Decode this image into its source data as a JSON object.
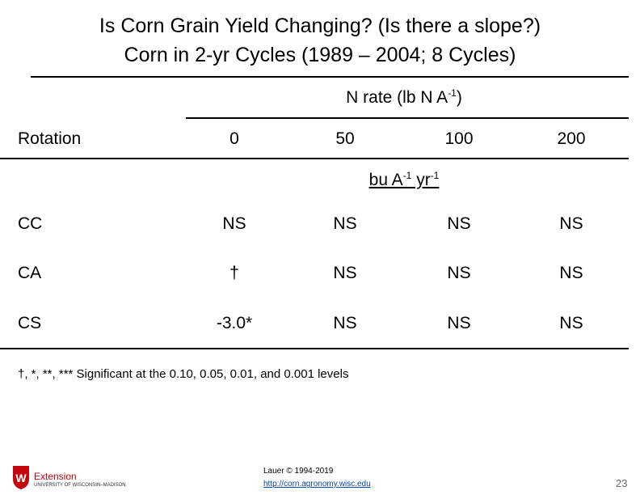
{
  "title": {
    "line1": "Is Corn Grain Yield Changing? (Is there a slope?)",
    "line2": "Corn in 2-yr Cycles (1989 – 2004; 8 Cycles)"
  },
  "table": {
    "group_header": {
      "text": "N rate (lb N A",
      "sup": "-1",
      "close": ")"
    },
    "row_header": "Rotation",
    "columns": [
      0,
      50,
      100,
      200
    ],
    "units": {
      "part1": "bu A",
      "sup1": "-1",
      "part2": " yr",
      "sup2": "-1"
    },
    "rows": [
      [
        "CC",
        "NS",
        "NS",
        "NS",
        "NS"
      ],
      [
        "CA",
        "†",
        "NS",
        "NS",
        "NS"
      ],
      [
        "CS",
        "-3.0*",
        "NS",
        "NS",
        "NS"
      ]
    ]
  },
  "footnote": "†, *, **, *** Significant at the 0.10, 0.05, 0.01, and 0.001 levels",
  "footer": {
    "logo_title": "Extension",
    "logo_subtitle": "UNIVERSITY OF WISCONSIN–MADISON",
    "credit": "Lauer © 1994-2019",
    "url": "http://corn.agronomy.wisc.edu",
    "page": "23"
  }
}
